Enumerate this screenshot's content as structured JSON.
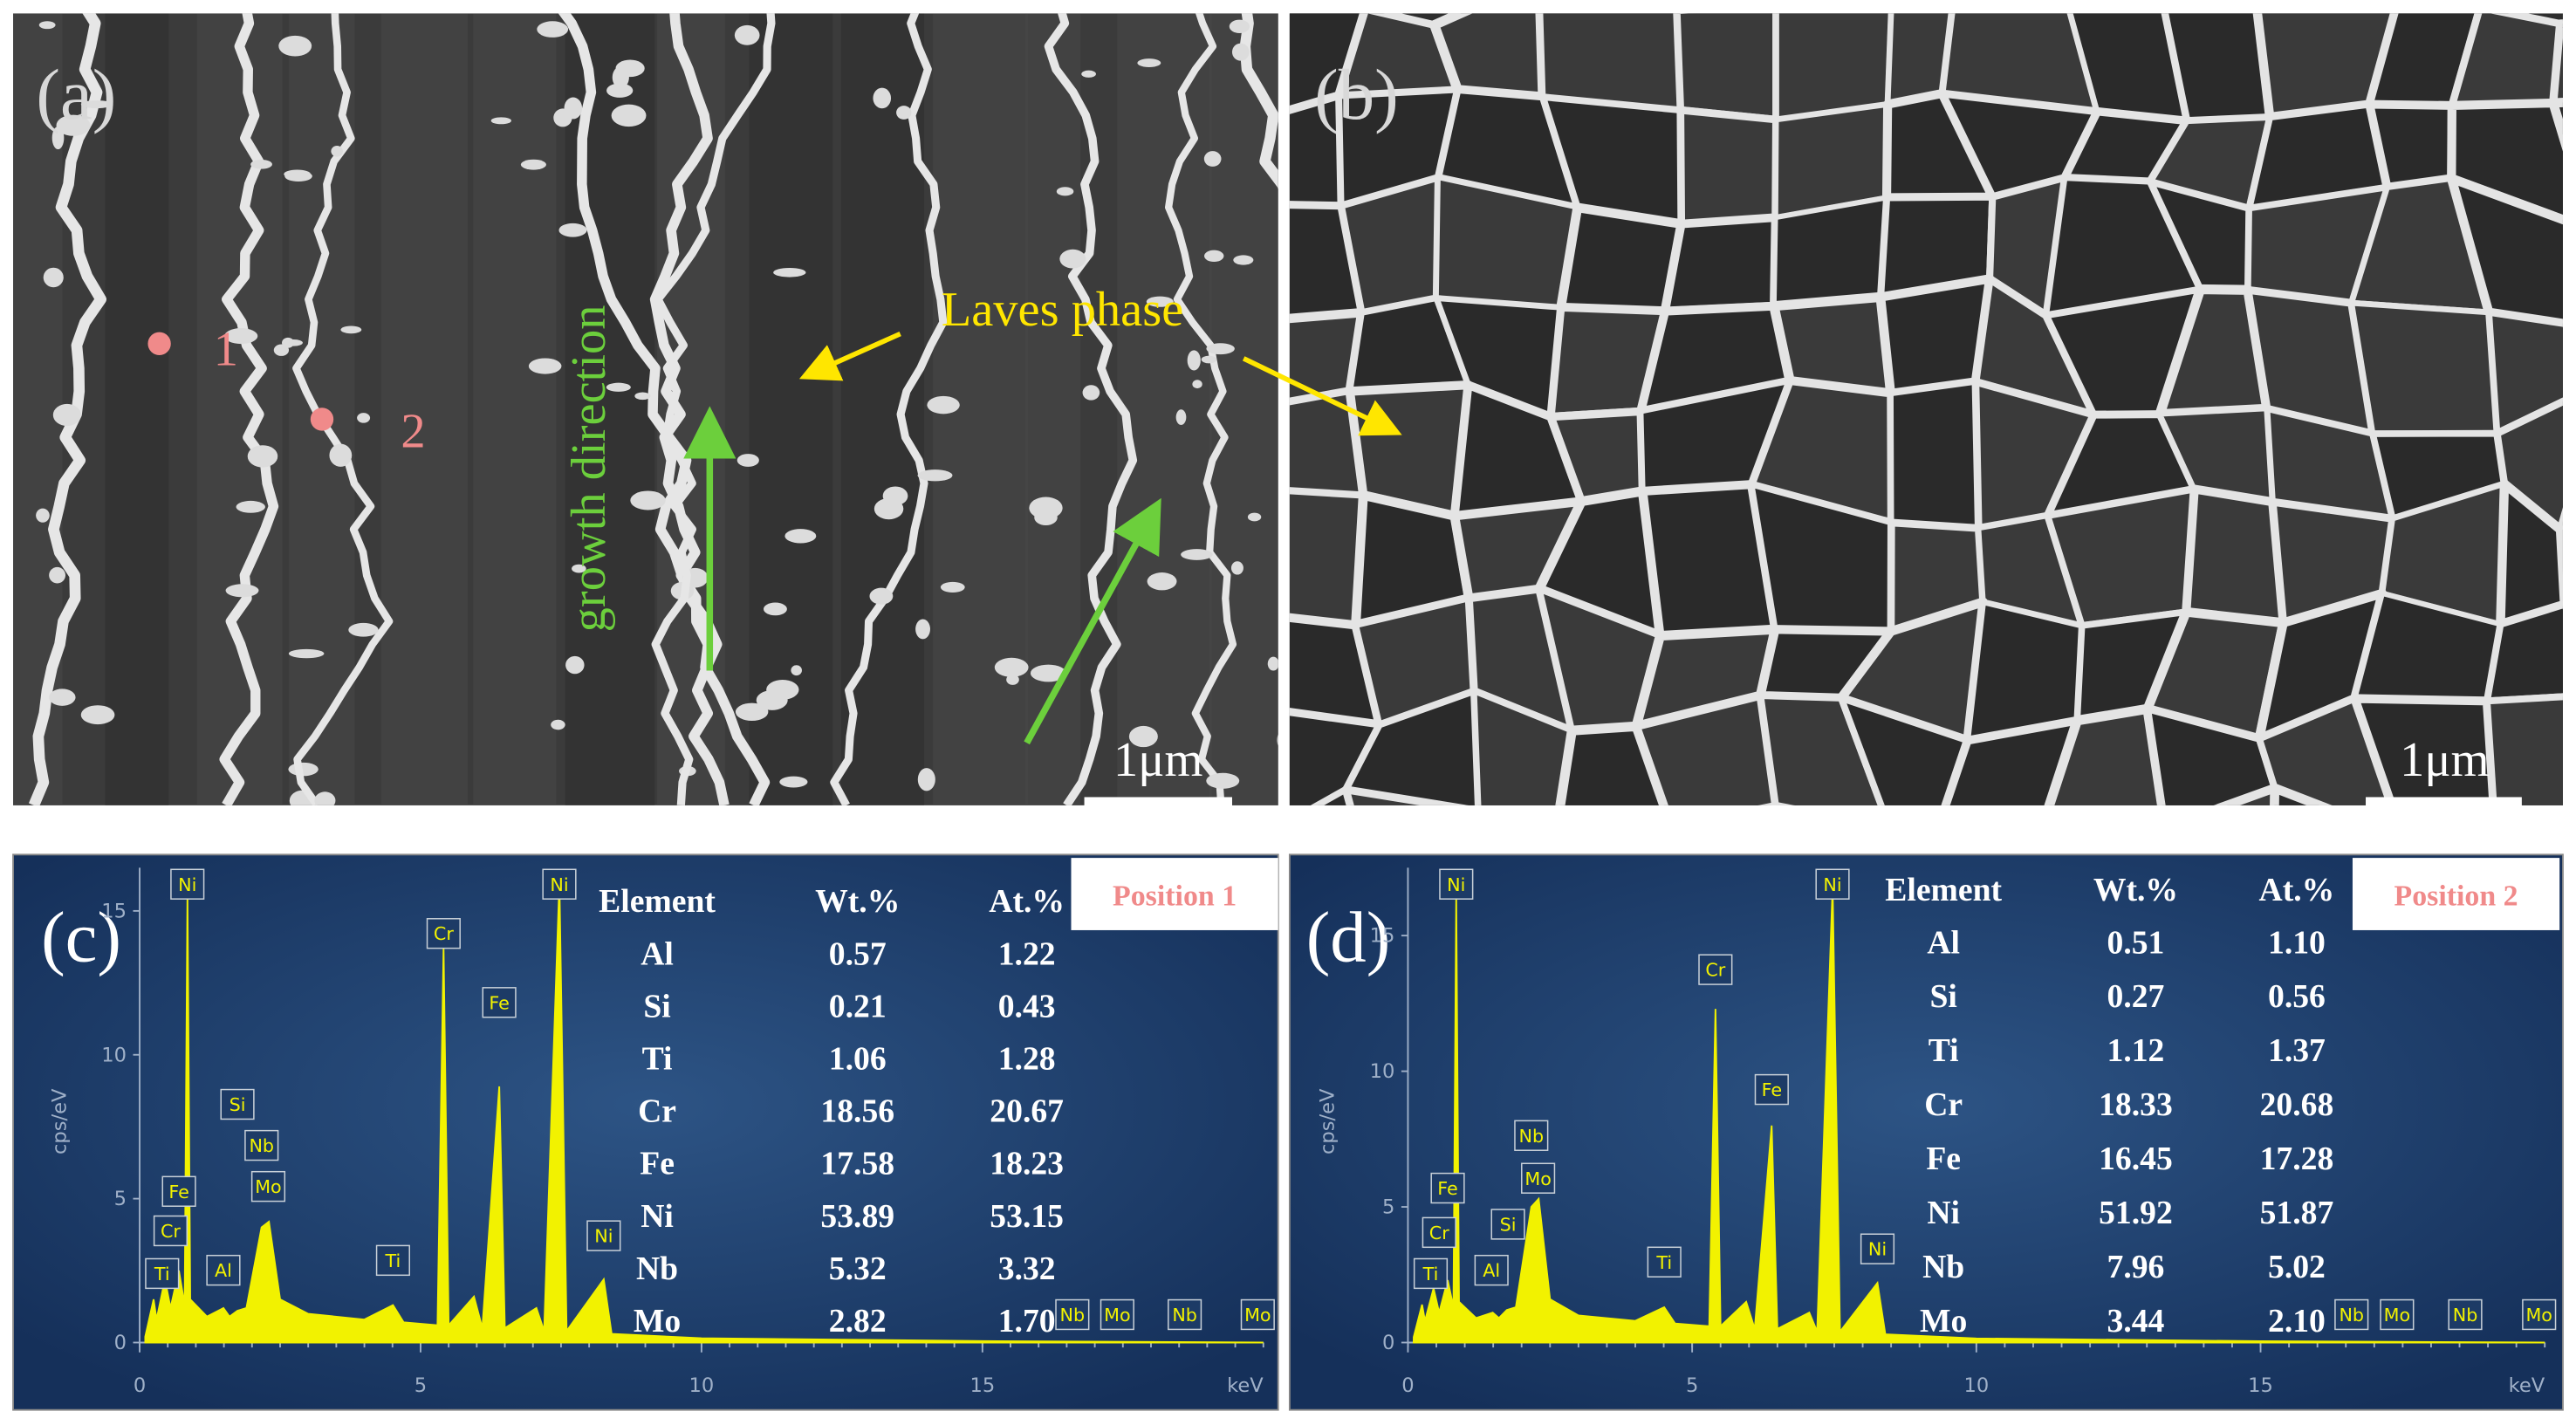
{
  "panels": {
    "a": {
      "label": "(a)",
      "points": [
        "1",
        "2"
      ],
      "growth": "growth direction",
      "laves": "Laves phase",
      "scale_bar": "1μm"
    },
    "b": {
      "label": "(b)",
      "scale_bar": "1μm"
    }
  },
  "chart_data": [
    {
      "type": "line",
      "panel_label": "(c)",
      "position": "Position 1",
      "y_label": "cps/eV",
      "x_label": "keV",
      "color": "#f2f200",
      "xlim": [
        0,
        20
      ],
      "xticks": [
        0,
        5,
        10,
        15
      ],
      "ylim": [
        0,
        16.5
      ],
      "yticks": [
        0,
        5,
        10,
        15
      ],
      "x": [
        0.1,
        0.25,
        0.3,
        0.45,
        0.55,
        0.7,
        0.8,
        0.85,
        0.9,
        1.2,
        1.49,
        1.6,
        1.74,
        1.9,
        2.17,
        2.3,
        2.5,
        3.0,
        4.0,
        4.51,
        4.7,
        5.3,
        5.41,
        5.5,
        5.95,
        6.1,
        6.4,
        6.5,
        7.06,
        7.2,
        7.47,
        7.6,
        8.26,
        8.4,
        10,
        15,
        20
      ],
      "values": [
        0.2,
        1.5,
        0.8,
        2.2,
        1.2,
        2.5,
        1.3,
        15.6,
        1.5,
        0.9,
        1.2,
        0.9,
        1.1,
        1.2,
        4.0,
        4.2,
        1.5,
        1.0,
        0.8,
        1.3,
        0.7,
        0.6,
        13.7,
        0.6,
        1.6,
        0.5,
        8.9,
        0.5,
        1.2,
        0.4,
        16.0,
        0.4,
        2.2,
        0.3,
        0.15,
        0.05,
        0
      ],
      "peak_labels": [
        {
          "text": "Ni",
          "x": 0.85
        },
        {
          "text": "Cr",
          "x": 5.41
        },
        {
          "text": "Fe",
          "x": 6.4
        },
        {
          "text": "Ni",
          "x": 7.47
        },
        {
          "text": "Si",
          "x": 1.74
        },
        {
          "text": "Nb",
          "x": 2.17
        },
        {
          "text": "Mo",
          "x": 2.29
        },
        {
          "text": "Fe",
          "x": 0.7
        },
        {
          "text": "Cr",
          "x": 0.55
        },
        {
          "text": "Ti",
          "x": 0.4
        },
        {
          "text": "Al",
          "x": 1.49
        },
        {
          "text": "Ti",
          "x": 4.51
        },
        {
          "text": "Ni",
          "x": 8.26
        },
        {
          "text": "Nb",
          "x": 16.6
        },
        {
          "text": "Mo",
          "x": 17.4
        },
        {
          "text": "Nb",
          "x": 18.6
        },
        {
          "text": "Mo",
          "x": 19.9
        }
      ],
      "table": {
        "columns": [
          "Element",
          "Wt.%",
          "At.%"
        ],
        "rows": [
          [
            "Al",
            "0.57",
            "1.22"
          ],
          [
            "Si",
            "0.21",
            "0.43"
          ],
          [
            "Ti",
            "1.06",
            "1.28"
          ],
          [
            "Cr",
            "18.56",
            "20.67"
          ],
          [
            "Fe",
            "17.58",
            "18.23"
          ],
          [
            "Ni",
            "53.89",
            "53.15"
          ],
          [
            "Nb",
            "5.32",
            "3.32"
          ],
          [
            "Mo",
            "2.82",
            "1.70"
          ]
        ]
      }
    },
    {
      "type": "line",
      "panel_label": "(d)",
      "position": "Position 2",
      "y_label": "cps/eV",
      "x_label": "keV",
      "color": "#f2f200",
      "xlim": [
        0,
        20
      ],
      "xticks": [
        0,
        5,
        10,
        15
      ],
      "ylim": [
        0,
        17.5
      ],
      "yticks": [
        0,
        5,
        10,
        15
      ],
      "x": [
        0.1,
        0.25,
        0.3,
        0.45,
        0.55,
        0.7,
        0.8,
        0.85,
        0.9,
        1.2,
        1.49,
        1.6,
        1.74,
        1.9,
        2.17,
        2.3,
        2.5,
        3.0,
        4.0,
        4.51,
        4.7,
        5.3,
        5.41,
        5.5,
        5.95,
        6.1,
        6.4,
        6.5,
        7.06,
        7.2,
        7.47,
        7.6,
        8.26,
        8.4,
        10,
        15,
        20
      ],
      "values": [
        0.2,
        1.4,
        0.8,
        2.0,
        1.1,
        2.3,
        1.3,
        16.5,
        1.5,
        0.9,
        1.1,
        0.9,
        1.2,
        1.3,
        5.0,
        5.3,
        1.6,
        1.0,
        0.8,
        1.3,
        0.7,
        0.6,
        12.3,
        0.6,
        1.5,
        0.5,
        8.0,
        0.5,
        1.1,
        0.4,
        16.8,
        0.4,
        2.2,
        0.3,
        0.15,
        0.05,
        0
      ],
      "peak_labels": [
        {
          "text": "Ni",
          "x": 0.85
        },
        {
          "text": "Cr",
          "x": 5.41
        },
        {
          "text": "Fe",
          "x": 6.4
        },
        {
          "text": "Ni",
          "x": 7.47
        },
        {
          "text": "Nb",
          "x": 2.17
        },
        {
          "text": "Mo",
          "x": 2.29
        },
        {
          "text": "Si",
          "x": 1.76
        },
        {
          "text": "Fe",
          "x": 0.7
        },
        {
          "text": "Cr",
          "x": 0.55
        },
        {
          "text": "Ti",
          "x": 0.4
        },
        {
          "text": "Al",
          "x": 1.47
        },
        {
          "text": "Ti",
          "x": 4.51
        },
        {
          "text": "Ni",
          "x": 8.26
        },
        {
          "text": "Nb",
          "x": 16.6
        },
        {
          "text": "Mo",
          "x": 17.4
        },
        {
          "text": "Nb",
          "x": 18.6
        },
        {
          "text": "Mo",
          "x": 19.9
        }
      ],
      "table": {
        "columns": [
          "Element",
          "Wt.%",
          "At.%"
        ],
        "rows": [
          [
            "Al",
            "0.51",
            "1.10"
          ],
          [
            "Si",
            "0.27",
            "0.56"
          ],
          [
            "Ti",
            "1.12",
            "1.37"
          ],
          [
            "Cr",
            "18.33",
            "20.68"
          ],
          [
            "Fe",
            "16.45",
            "17.28"
          ],
          [
            "Ni",
            "51.92",
            "51.87"
          ],
          [
            "Nb",
            "7.96",
            "5.02"
          ],
          [
            "Mo",
            "3.44",
            "2.10"
          ]
        ]
      }
    }
  ]
}
